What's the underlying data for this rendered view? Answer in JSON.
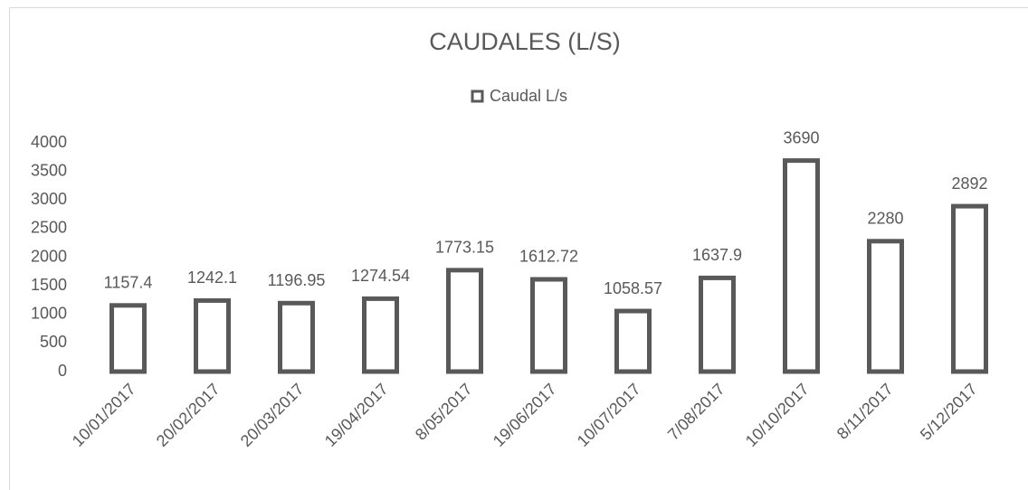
{
  "chart_data": {
    "type": "bar",
    "title": "CAUDALES (L/S)",
    "categories": [
      "10/01/2017",
      "20/02/2017",
      "20/03/2017",
      "19/04/2017",
      "8/05/2017",
      "19/06/2017",
      "10/07/2017",
      "7/08/2017",
      "10/10/2017",
      "8/11/2017",
      "5/12/2017"
    ],
    "series": [
      {
        "name": "Caudal L/s",
        "color": "#595959",
        "values": [
          1157.4,
          1242.1,
          1196.95,
          1274.54,
          1773.15,
          1612.72,
          1058.57,
          1637.9,
          3690,
          2280,
          2892
        ]
      }
    ],
    "ylim": [
      0,
      4000
    ],
    "yticks": [
      0,
      500,
      1000,
      1500,
      2000,
      2500,
      3000,
      3500,
      4000
    ],
    "legend": "top",
    "grid": false
  }
}
